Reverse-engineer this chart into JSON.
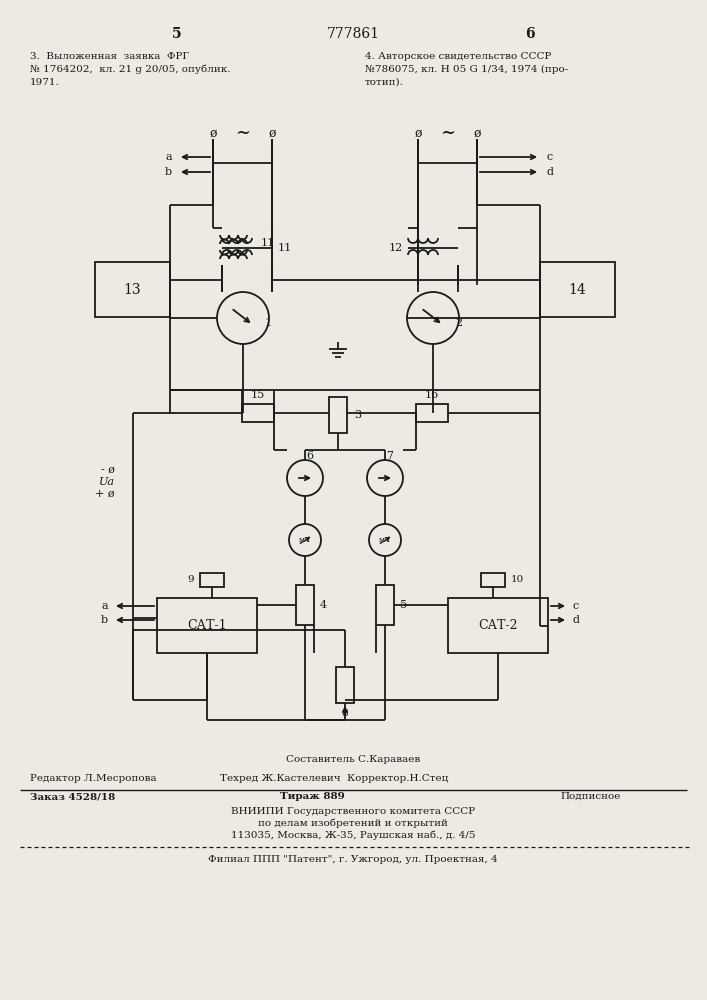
{
  "bg_color": "#ede9e3",
  "line_color": "#1a1a1a",
  "page_number_left": "5",
  "page_number_center": "777861",
  "page_number_right": "6",
  "ref_line1": "3.  Выложенная  заявка  ФРГ",
  "ref_line2": "№ 1764202,  кл. 21 g 20/05, опублик.",
  "ref_line3": "1971.",
  "ref_line4": "4. Авторское свидетельство СССР",
  "ref_line5": "№786075, кл. Н 05 G 1/34, 1974 (про-",
  "ref_line6": "тотип).",
  "footer1": "Составитель С.Караваев",
  "footer2_left": "Редактор Л.Месропова",
  "footer2_mid": "Техред Ж.Кастелевич  Корректор.Н.Стец",
  "footer3_left": "Заказ 4528/18",
  "footer3_mid": "Тираж 889",
  "footer3_right": "Подписное",
  "footer4": "ВНИИПИ Государственного комитета СССР",
  "footer5": "по делам изобретений и открытий",
  "footer6": "113035, Москва, Ж-35, Раушская наб., д. 4/5",
  "footer7": "Филиал ППП \"Патент\", г. Ужгород, ул. Проектная, 4"
}
